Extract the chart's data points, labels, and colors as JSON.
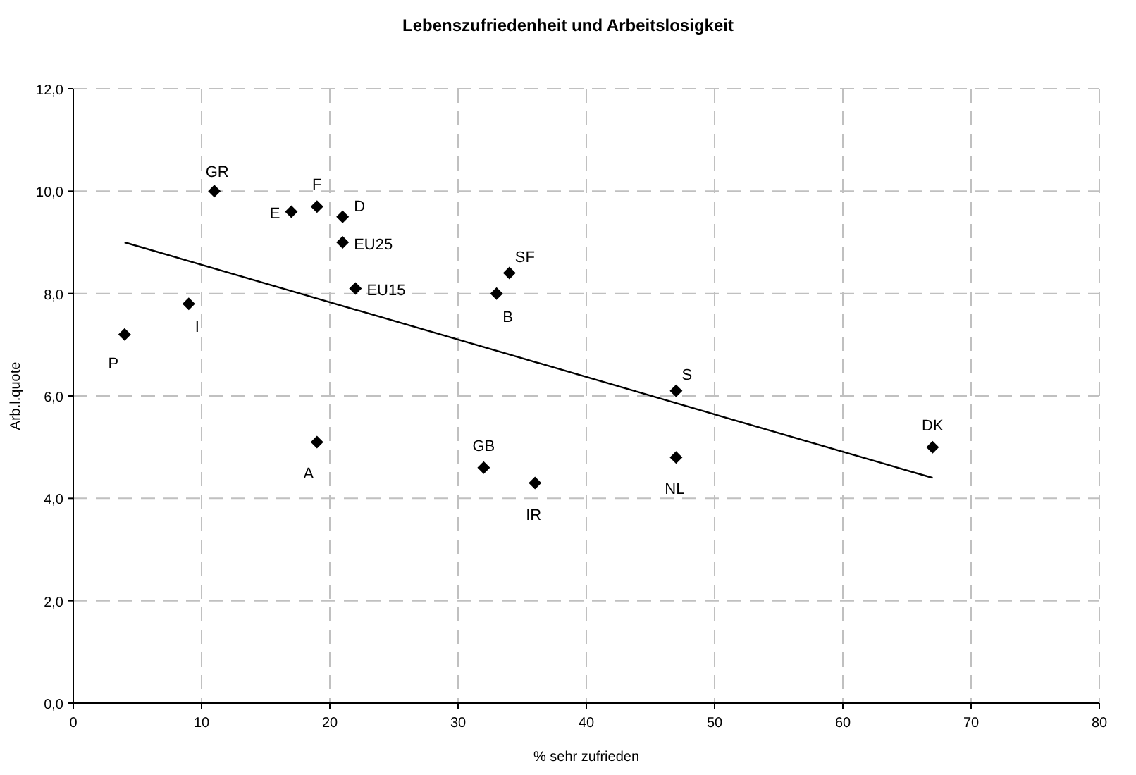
{
  "chart_data": {
    "type": "scatter",
    "title": "Lebenszufriedenheit und Arbeitslosigkeit",
    "xlabel": "% sehr zufrieden",
    "ylabel": "Arb.l.quote",
    "xlim": [
      0,
      80
    ],
    "xticks": [
      0,
      10,
      20,
      30,
      40,
      50,
      60,
      70,
      80
    ],
    "ylim": [
      0,
      12
    ],
    "yticks": [
      {
        "value": 0,
        "label": "0,0"
      },
      {
        "value": 2,
        "label": "2,0"
      },
      {
        "value": 4,
        "label": "4,0"
      },
      {
        "value": 6,
        "label": "6,0"
      },
      {
        "value": 8,
        "label": "8,0"
      },
      {
        "value": 10,
        "label": "10,0"
      },
      {
        "value": 12,
        "label": "12,0"
      }
    ],
    "grid": true,
    "marker": "diamond",
    "series": [
      {
        "color": "#000000",
        "x": [
          4,
          9,
          11,
          17,
          19,
          21,
          21,
          22,
          19,
          33,
          34,
          32,
          36,
          47,
          47,
          67
        ],
        "values": [
          7.2,
          7.8,
          10,
          9.6,
          9.7,
          9.5,
          9.0,
          8.1,
          5.1,
          8.0,
          8.4,
          4.6,
          4.3,
          6.1,
          4.8,
          5.0
        ],
        "value_labels": [
          "P",
          "I",
          "GR",
          "E",
          "F",
          "D",
          "EU25",
          "EU15",
          "A",
          "B",
          "SF",
          "GB",
          "IR",
          "S",
          "NL",
          "DK"
        ]
      },
      {
        "type": "line",
        "color": "#000000",
        "marker": "none",
        "line_style": "solid",
        "x": [
          4,
          67
        ],
        "values": [
          9.0,
          4.4
        ]
      }
    ]
  }
}
